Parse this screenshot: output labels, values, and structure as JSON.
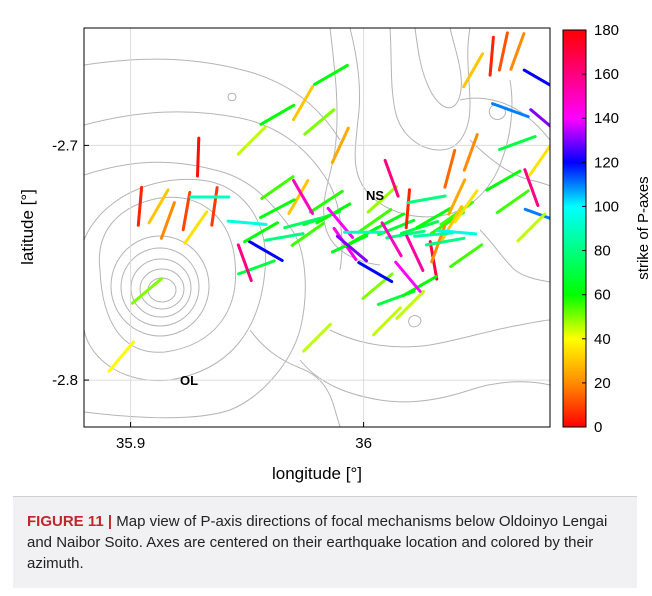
{
  "chart_data": {
    "type": "map-segments",
    "xlabel": "longitude [°]",
    "ylabel": "latitude [°]",
    "xlim": [
      35.88,
      36.08
    ],
    "ylim": [
      -2.82,
      -2.65
    ],
    "xticks": [
      {
        "value": 35.9,
        "label": "35.9"
      },
      {
        "value": 36.0,
        "label": "36"
      }
    ],
    "yticks": [
      {
        "value": -2.7,
        "label": "-2.7"
      },
      {
        "value": -2.8,
        "label": "-2.8"
      }
    ],
    "grid": true,
    "colorbar": {
      "label": "strike of P-axes",
      "range": [
        0,
        180
      ],
      "ticks": [
        0,
        20,
        40,
        60,
        80,
        100,
        120,
        140,
        160,
        180
      ]
    },
    "site_labels": [
      {
        "text": "NS",
        "lon": 36.004,
        "lat": -2.721
      },
      {
        "text": "OL",
        "lon": 35.919,
        "lat": -2.8
      }
    ],
    "segments": [
      [
        35.904,
        -2.726,
        5
      ],
      [
        35.912,
        -2.726,
        30
      ],
      [
        35.916,
        -2.732,
        20
      ],
      [
        35.924,
        -2.728,
        10
      ],
      [
        35.928,
        -2.735,
        35
      ],
      [
        35.936,
        -2.726,
        8
      ],
      [
        35.929,
        -2.705,
        2
      ],
      [
        35.963,
        -2.718,
        55
      ],
      [
        35.972,
        -2.722,
        30
      ],
      [
        35.976,
        -2.738,
        55
      ],
      [
        35.982,
        -2.731,
        70
      ],
      [
        35.958,
        -2.745,
        120
      ],
      [
        35.954,
        -2.752,
        70
      ],
      [
        35.949,
        -2.75,
        160
      ],
      [
        35.907,
        -2.762,
        50
      ],
      [
        35.896,
        -2.79,
        40
      ],
      [
        35.934,
        -2.722,
        90
      ],
      [
        35.95,
        -2.733,
        95
      ],
      [
        35.963,
        -2.727,
        62
      ],
      [
        35.984,
        -2.724,
        57
      ],
      [
        35.994,
        -2.742,
        65
      ],
      [
        35.956,
        -2.737,
        60
      ],
      [
        35.966,
        -2.739,
        80
      ],
      [
        35.974,
        -2.733,
        75
      ],
      [
        35.987,
        -2.729,
        60
      ],
      [
        35.974,
        -2.722,
        150
      ],
      [
        35.99,
        -2.733,
        140
      ],
      [
        35.963,
        -2.687,
        60
      ],
      [
        35.952,
        -2.698,
        45
      ],
      [
        35.974,
        -2.682,
        30
      ],
      [
        35.986,
        -2.67,
        60
      ],
      [
        35.99,
        -2.7,
        25
      ],
      [
        35.992,
        -2.742,
        145
      ],
      [
        35.999,
        -2.739,
        60
      ],
      [
        36.005,
        -2.732,
        55
      ],
      [
        36.01,
        -2.733,
        62
      ],
      [
        36.014,
        -2.735,
        68
      ],
      [
        36.018,
        -2.738,
        80
      ],
      [
        36.024,
        -2.735,
        72
      ],
      [
        36.03,
        -2.731,
        60
      ],
      [
        36.036,
        -2.733,
        57
      ],
      [
        36.04,
        -2.729,
        55
      ],
      [
        36.008,
        -2.723,
        48
      ],
      [
        36.012,
        -2.714,
        160
      ],
      [
        36.019,
        -2.727,
        5
      ],
      [
        36.012,
        -2.74,
        150
      ],
      [
        36.022,
        -2.746,
        155
      ],
      [
        36.03,
        -2.749,
        170
      ],
      [
        36.032,
        -2.742,
        20
      ],
      [
        36.038,
        -2.733,
        30
      ],
      [
        36.006,
        -2.76,
        50
      ],
      [
        36.014,
        -2.765,
        70
      ],
      [
        36.02,
        -2.768,
        45
      ],
      [
        36.01,
        -2.775,
        45
      ],
      [
        36.024,
        -2.76,
        60
      ],
      [
        36.019,
        -2.756,
        140
      ],
      [
        36.0,
        -2.737,
        90
      ],
      [
        36.005,
        -2.754,
        120
      ],
      [
        36.03,
        -2.738,
        85
      ],
      [
        36.035,
        -2.741,
        80
      ],
      [
        36.04,
        -2.737,
        95
      ],
      [
        36.027,
        -2.723,
        80
      ],
      [
        36.037,
        -2.71,
        15
      ],
      [
        36.04,
        -2.722,
        25
      ],
      [
        36.044,
        -2.726,
        35
      ],
      [
        35.98,
        -2.782,
        45
      ],
      [
        36.044,
        -2.747,
        55
      ],
      [
        36.06,
        -2.715,
        60
      ],
      [
        36.066,
        -2.699,
        70
      ],
      [
        36.064,
        -2.724,
        55
      ],
      [
        36.072,
        -2.718,
        160
      ],
      [
        36.077,
        -2.73,
        110
      ],
      [
        36.063,
        -2.685,
        110
      ],
      [
        36.076,
        -2.672,
        120
      ],
      [
        36.078,
        -2.69,
        130
      ],
      [
        36.066,
        -2.66,
        20
      ],
      [
        36.055,
        -2.662,
        5
      ],
      [
        36.06,
        -2.66,
        12
      ],
      [
        36.047,
        -2.668,
        30
      ],
      [
        36.046,
        -2.703,
        20
      ],
      [
        36.072,
        -2.735,
        45
      ],
      [
        36.076,
        -2.706,
        35
      ],
      [
        35.981,
        -2.69,
        50
      ],
      [
        35.995,
        -2.744,
        130
      ]
    ]
  },
  "caption": {
    "label": "FIGURE 11",
    "separator": "|",
    "text": "Map view of P-axis directions of focal mechanisms below Oldoinyo Lengai and Naibor Soito. Axes are centered on their earthquake location and colored by their azimuth."
  }
}
